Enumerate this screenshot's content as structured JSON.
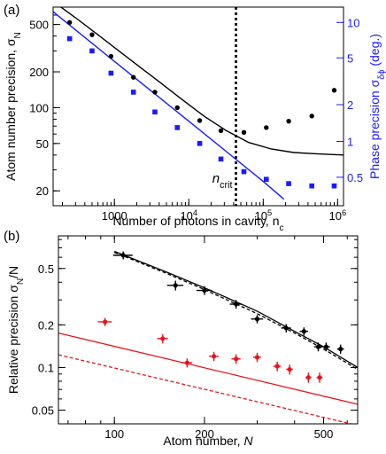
{
  "chart_data": [
    {
      "panel": "(a)",
      "type": "scatter",
      "x_scale": "log",
      "y_scale": "log",
      "xlabel": "Number of photons in cavity, n",
      "xlabel_sub": "c",
      "ylabel": "Atom number precision, σ",
      "ylabel_sub": "N",
      "y2label": "Phase precision σ",
      "y2label_sub": "δϕ",
      "y2label_unit": " (deg.)",
      "xlim": [
        150,
        1200000
      ],
      "ylim": [
        15,
        700
      ],
      "y2_ticks": [
        {
          "label": "10",
          "y": 520
        },
        {
          "label": "5",
          "y": 262
        },
        {
          "label": "2",
          "y": 106
        },
        {
          "label": "1",
          "y": 52
        },
        {
          "label": "0.5",
          "y": 26
        }
      ],
      "y2_color": "#1a1aff",
      "x_ticks": [
        {
          "label": "1000",
          "x": 1000
        },
        {
          "label": "10",
          "sup": "4",
          "x": 10000
        },
        {
          "label": "10",
          "sup": "5",
          "x": 100000
        },
        {
          "label": "10",
          "sup": "6",
          "x": 1000000
        }
      ],
      "y_ticks": [
        20,
        50,
        100,
        200,
        500
      ],
      "vline": {
        "x": 43000,
        "label": "n",
        "label_sub": "crit"
      },
      "series": [
        {
          "color": "#000000",
          "marker": "circle",
          "points": [
            [
              250,
              520
            ],
            [
              500,
              410
            ],
            [
              900,
              270
            ],
            [
              1800,
              180
            ],
            [
              3500,
              135
            ],
            [
              7000,
              100
            ],
            [
              14000,
              78
            ],
            [
              27000,
              64
            ],
            [
              55000,
              62
            ],
            [
              110000,
              68
            ],
            [
              220000,
              77
            ],
            [
              450000,
              85
            ],
            [
              900000,
              140
            ]
          ]
        },
        {
          "color": "#1a1aff",
          "marker": "square",
          "points": [
            [
              250,
              380
            ],
            [
              500,
              300
            ],
            [
              900,
              195
            ],
            [
              1800,
              135
            ],
            [
              3500,
              92
            ],
            [
              7000,
              68
            ],
            [
              14000,
              50
            ],
            [
              27000,
              37
            ],
            [
              55000,
              29
            ],
            [
              110000,
              25
            ],
            [
              220000,
              23
            ],
            [
              450000,
              22
            ],
            [
              900000,
              22
            ]
          ]
        }
      ],
      "lines": [
        {
          "color": "#000000",
          "style": "solid",
          "points": [
            [
              150,
              780
            ],
            [
              300,
              570
            ],
            [
              600,
              410
            ],
            [
              1000,
              320
            ],
            [
              2000,
              230
            ],
            [
              4000,
              165
            ],
            [
              8000,
              118
            ],
            [
              16000,
              85
            ],
            [
              32000,
              64
            ],
            [
              64000,
              51
            ],
            [
              128000,
              45
            ],
            [
              256000,
              42
            ],
            [
              512000,
              41
            ],
            [
              1200000,
              40
            ]
          ]
        },
        {
          "color": "#1a1aff",
          "style": "solid",
          "points": [
            [
              150,
              640
            ],
            [
              1000,
              245
            ],
            [
              10000,
              77
            ],
            [
              100000,
              24
            ],
            [
              190000,
              17
            ]
          ]
        }
      ]
    },
    {
      "panel": "(b)",
      "type": "scatter",
      "x_scale": "log",
      "y_scale": "log",
      "xlabel": "Atom number, N",
      "ylabel": "Relative precision σ",
      "ylabel_sub": "N",
      "ylabel_suffix": "/N",
      "xlim": [
        65,
        650
      ],
      "ylim": [
        0.04,
        0.85
      ],
      "x_ticks": [
        100,
        200,
        500
      ],
      "y_ticks": [
        {
          "label": "0.05",
          "y": 0.05
        },
        {
          "label": "0.1",
          "y": 0.1
        },
        {
          "label": "0.2",
          "y": 0.2
        },
        {
          "label": "0.5",
          "y": 0.5
        }
      ],
      "series": [
        {
          "color": "#000000",
          "marker": "circle",
          "points": [
            {
              "x": 107,
              "y": 0.62,
              "xerr": 8,
              "yerr": 0.04
            },
            {
              "x": 160,
              "y": 0.38,
              "xerr": 10,
              "yerr": 0.03
            },
            {
              "x": 200,
              "y": 0.35,
              "xerr": 12,
              "yerr": 0.025
            },
            {
              "x": 255,
              "y": 0.28,
              "xerr": 12,
              "yerr": 0.02
            },
            {
              "x": 300,
              "y": 0.22,
              "xerr": 14,
              "yerr": 0.015
            },
            {
              "x": 375,
              "y": 0.19,
              "xerr": 14,
              "yerr": 0.013
            },
            {
              "x": 430,
              "y": 0.18,
              "xerr": 14,
              "yerr": 0.012
            },
            {
              "x": 480,
              "y": 0.14,
              "xerr": 15,
              "yerr": 0.01
            },
            {
              "x": 510,
              "y": 0.14,
              "xerr": 15,
              "yerr": 0.01
            },
            {
              "x": 570,
              "y": 0.135,
              "xerr": 15,
              "yerr": 0.01
            }
          ]
        },
        {
          "color": "#e8141c",
          "marker": "circle",
          "points": [
            {
              "x": 93,
              "y": 0.21,
              "xerr": 5,
              "yerr": 0.014
            },
            {
              "x": 145,
              "y": 0.16,
              "xerr": 6,
              "yerr": 0.012
            },
            {
              "x": 175,
              "y": 0.108,
              "xerr": 7,
              "yerr": 0.008
            },
            {
              "x": 215,
              "y": 0.12,
              "xerr": 8,
              "yerr": 0.009
            },
            {
              "x": 255,
              "y": 0.115,
              "xerr": 9,
              "yerr": 0.009
            },
            {
              "x": 300,
              "y": 0.118,
              "xerr": 9,
              "yerr": 0.009
            },
            {
              "x": 350,
              "y": 0.102,
              "xerr": 10,
              "yerr": 0.008
            },
            {
              "x": 385,
              "y": 0.097,
              "xerr": 10,
              "yerr": 0.008
            },
            {
              "x": 445,
              "y": 0.085,
              "xerr": 10,
              "yerr": 0.007
            },
            {
              "x": 485,
              "y": 0.085,
              "xerr": 11,
              "yerr": 0.007
            }
          ]
        }
      ],
      "lines": [
        {
          "color": "#000000",
          "style": "solid",
          "points": [
            [
              100,
              0.66
            ],
            [
              150,
              0.47
            ],
            [
              200,
              0.365
            ],
            [
              300,
              0.25
            ],
            [
              400,
              0.18
            ],
            [
              500,
              0.14
            ],
            [
              650,
              0.1
            ]
          ]
        },
        {
          "color": "#000000",
          "style": "dashed",
          "points": [
            [
              100,
              0.65
            ],
            [
              150,
              0.46
            ],
            [
              200,
              0.355
            ],
            [
              300,
              0.24
            ],
            [
              400,
              0.175
            ],
            [
              500,
              0.135
            ],
            [
              650,
              0.097
            ]
          ]
        },
        {
          "color": "#e8141c",
          "style": "solid",
          "points": [
            [
              65,
              0.175
            ],
            [
              650,
              0.055
            ]
          ]
        },
        {
          "color": "#e8141c",
          "style": "dashed",
          "points": [
            [
              65,
              0.123
            ],
            [
              650,
              0.039
            ]
          ]
        }
      ]
    }
  ]
}
